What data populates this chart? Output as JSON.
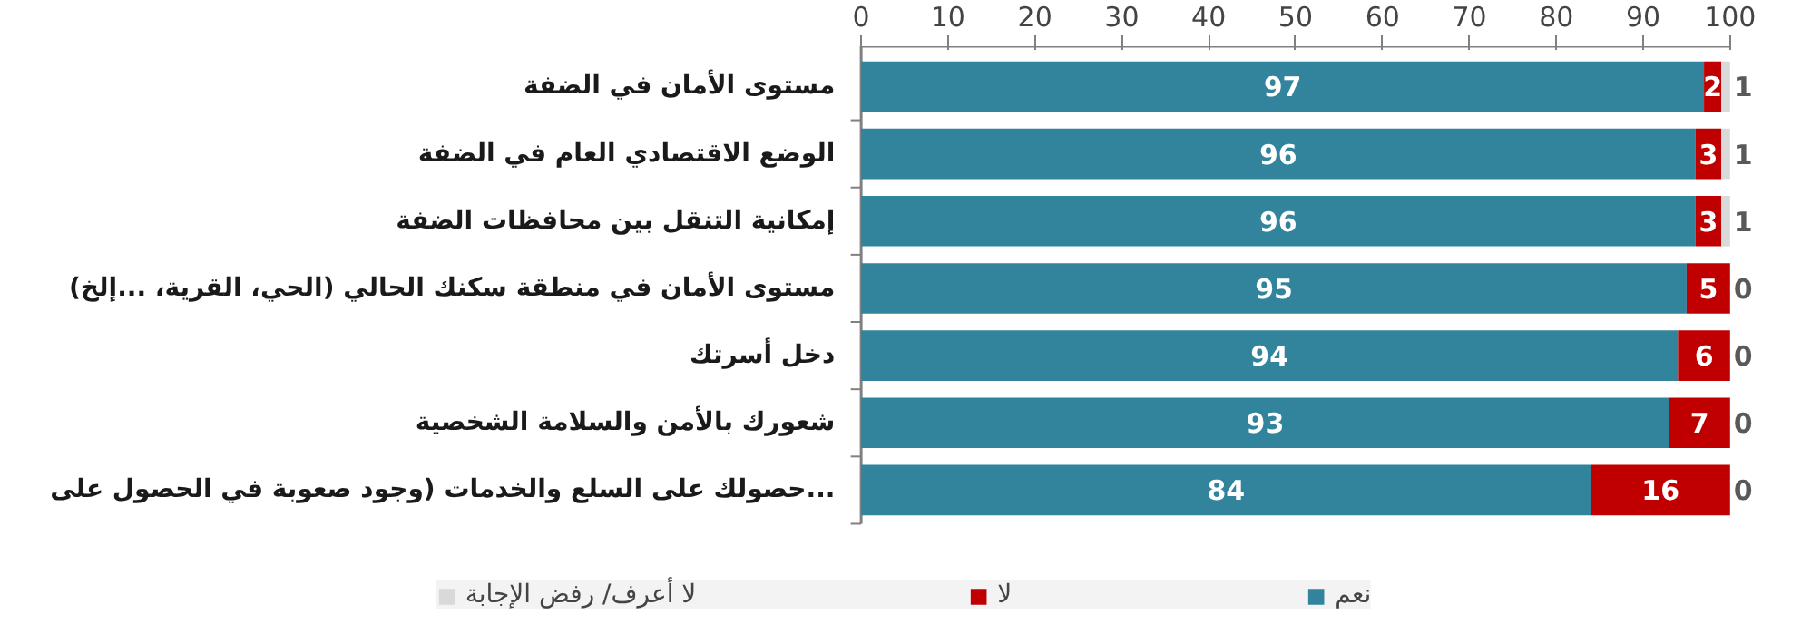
{
  "chart_data": {
    "type": "bar",
    "orientation": "horizontal",
    "stacked": true,
    "categories": [
      "مستوى الأمان في الضفة",
      "الوضع الاقتصادي العام في الضفة",
      "إمكانية التنقل بين محافظات الضفة",
      "مستوى الأمان في منطقة سكنك الحالي (الحي، القرية، ...إلخ)",
      "دخل أسرتك",
      "شعورك بالأمن والسلامة الشخصية",
      "حصولك على السلع والخدمات (وجود صعوبة في الحصول على..."
    ],
    "series": [
      {
        "name": "نعم",
        "color": "#31849b",
        "values": [
          97,
          96,
          96,
          95,
          94,
          93,
          84
        ]
      },
      {
        "name": "لا",
        "color": "#c00000",
        "values": [
          2,
          3,
          3,
          5,
          6,
          7,
          16
        ]
      },
      {
        "name": "لا أعرف/ رفض الإجابة",
        "color": "#d9d9d9",
        "values": [
          1,
          1,
          1,
          0,
          0,
          0,
          0
        ]
      }
    ],
    "xlim": [
      0,
      100
    ],
    "xticks": [
      0,
      10,
      20,
      30,
      40,
      50,
      60,
      70,
      80,
      90,
      100
    ],
    "data_labels": true,
    "grid": false,
    "legend": "bottom"
  }
}
